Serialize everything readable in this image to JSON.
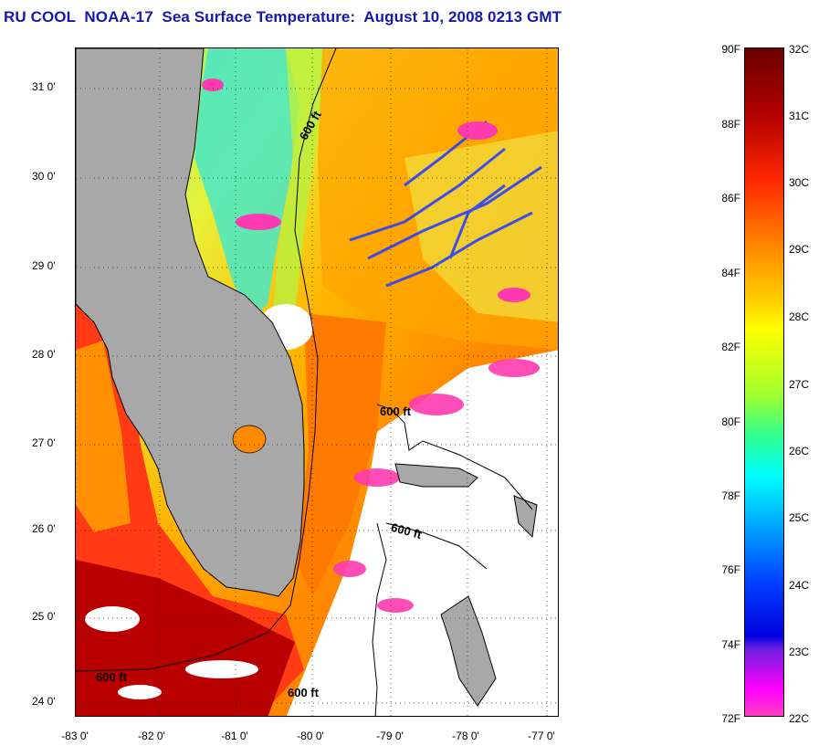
{
  "header": {
    "title": "RU COOL  NOAA-17  Sea Surface Temperature:  August 10, 2008 0213 GMT"
  },
  "map": {
    "y_ticks": [
      "31 0'",
      "30 0'",
      "29 0'",
      "28 0'",
      "27 0'",
      "26 0'",
      "25 0'",
      "24 0'"
    ],
    "x_ticks": [
      "-83 0'",
      "-82 0'",
      "-81 0'",
      "-80 0'",
      "-79 0'",
      "-78 0'",
      "-77 0'"
    ],
    "contour_labels": [
      "600 ft",
      "600 ft",
      "600 ft",
      "600 ft",
      "600 ft"
    ],
    "land_color": "#a8a8a8",
    "cloud_color": "#ffffff"
  },
  "colorbar": {
    "fahrenheit": [
      "90F",
      "88F",
      "86F",
      "84F",
      "82F",
      "80F",
      "78F",
      "76F",
      "74F",
      "72F"
    ],
    "celsius": [
      "32C",
      "31C",
      "30C",
      "29C",
      "28C",
      "27C",
      "26C",
      "25C",
      "24C",
      "23C",
      "22C"
    ]
  }
}
